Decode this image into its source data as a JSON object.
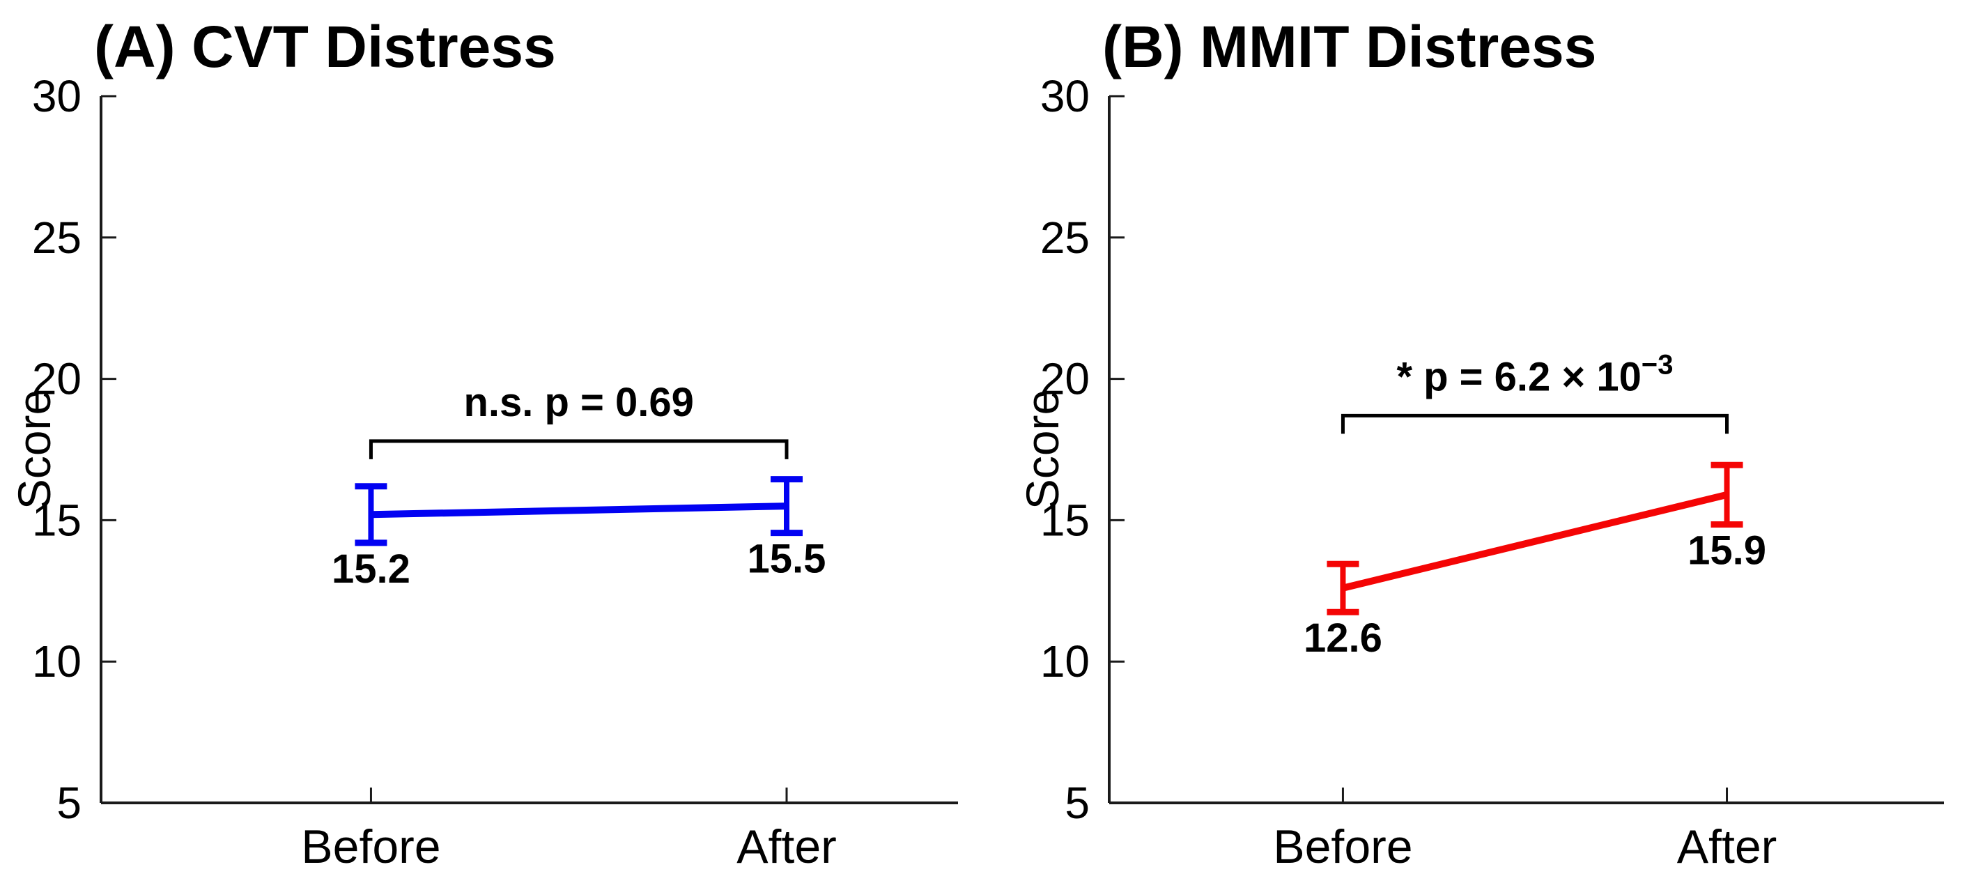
{
  "figure": {
    "background": "#ffffff",
    "axis_color": "#1a1a1a",
    "text_color": "#000000"
  },
  "chart_data": [
    {
      "type": "line",
      "panel": "A",
      "title": "(A) CVT Distress",
      "ylabel": "Score",
      "xlabel": "",
      "categories": [
        "Before",
        "After"
      ],
      "values": [
        15.2,
        15.5
      ],
      "errors": [
        1.0,
        0.95
      ],
      "data_labels": [
        "15.2",
        "15.5"
      ],
      "yticks": [
        5,
        10,
        15,
        20,
        25,
        30
      ],
      "ytick_labels": [
        "5",
        "10",
        "15",
        "20",
        "25",
        "30"
      ],
      "ylim": [
        5,
        30
      ],
      "grid": "off",
      "legend": "none",
      "series_color": "#0202f2",
      "significance": {
        "label_base": "n.s. p = 0.69",
        "label_exponent": "",
        "bracket_y_score": 17.8
      }
    },
    {
      "type": "line",
      "panel": "B",
      "title": "(B) MMIT Distress",
      "ylabel": "Score",
      "xlabel": "",
      "categories": [
        "Before",
        "After"
      ],
      "values": [
        12.6,
        15.9
      ],
      "errors": [
        0.85,
        1.05
      ],
      "data_labels": [
        "12.6",
        "15.9"
      ],
      "yticks": [
        5,
        10,
        15,
        20,
        25,
        30
      ],
      "ytick_labels": [
        "5",
        "10",
        "15",
        "20",
        "25",
        "30"
      ],
      "ylim": [
        5,
        30
      ],
      "grid": "off",
      "legend": "none",
      "series_color": "#f40505",
      "significance": {
        "label_base": "* p = 6.2 × 10",
        "label_exponent": "−3",
        "bracket_y_score": 18.7
      }
    }
  ]
}
